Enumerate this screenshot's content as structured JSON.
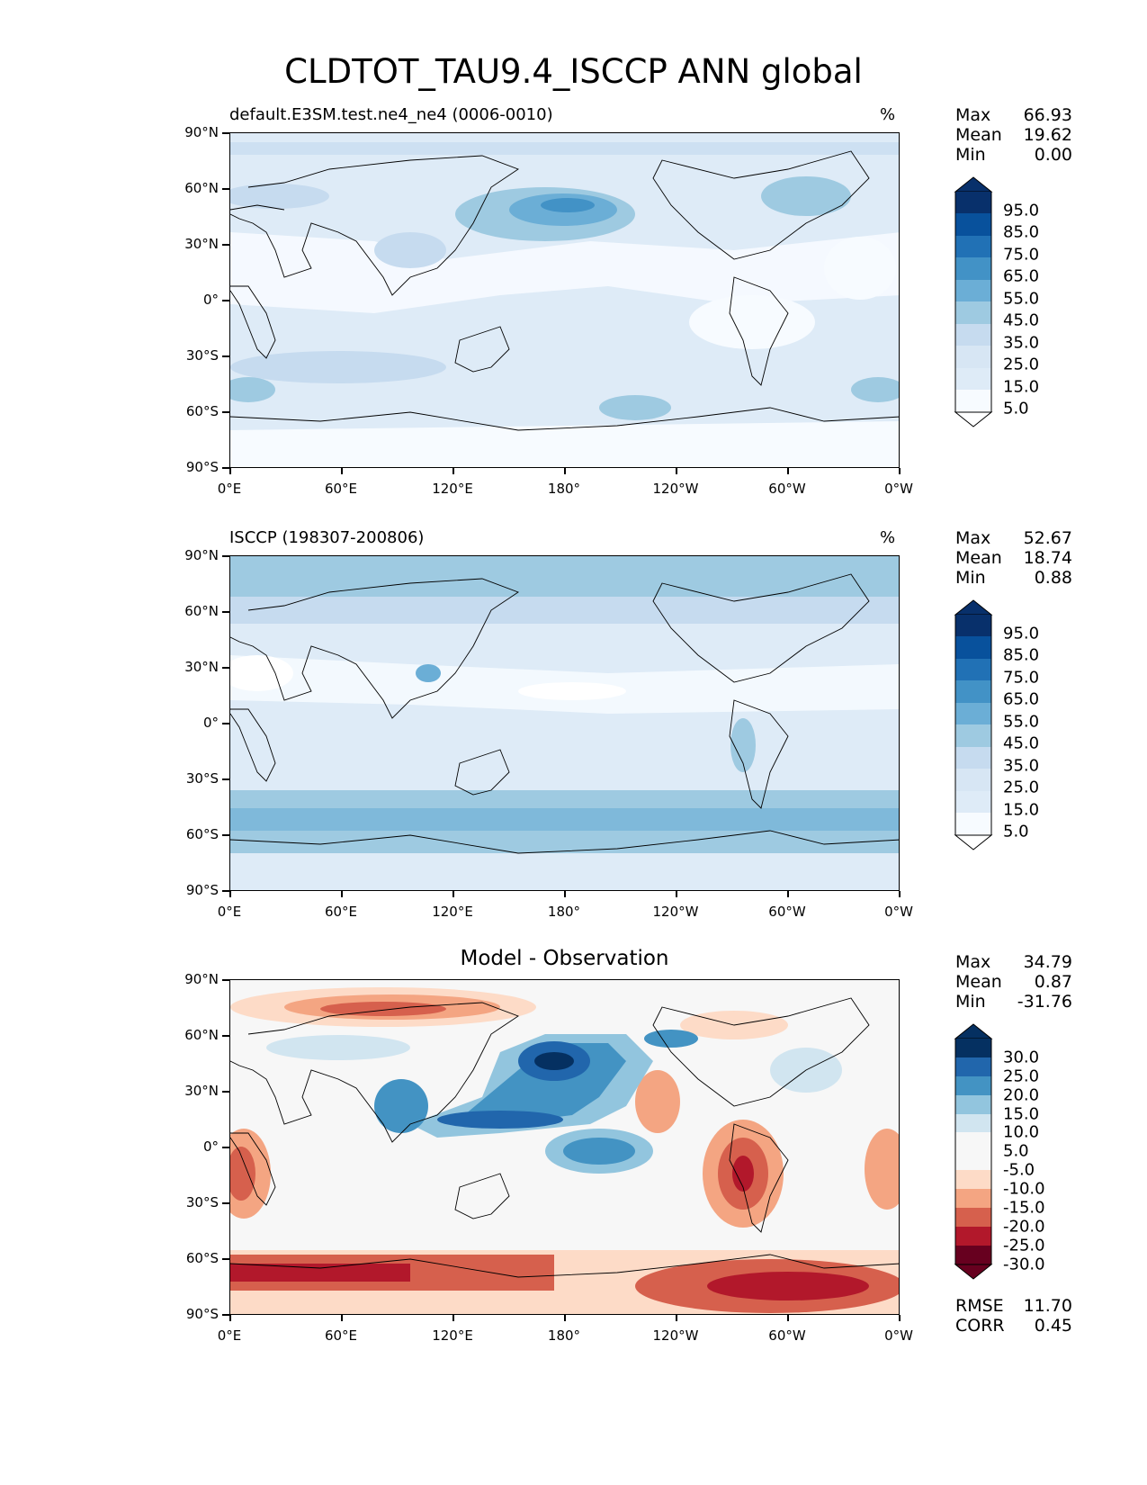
{
  "title": "CLDTOT_TAU9.4_ISCCP ANN global",
  "axes": {
    "y_labels": [
      "90°N",
      "60°N",
      "30°N",
      "0°",
      "30°S",
      "60°S",
      "90°S"
    ],
    "x_labels": [
      "0°E",
      "60°E",
      "120°E",
      "180°",
      "120°W",
      "60°W",
      "0°W"
    ]
  },
  "panels": [
    {
      "left_title": "default.E3SM.test.ne4_ne4 (0006-0010)",
      "right_title": "%",
      "stats": [
        {
          "label": "Max",
          "value": "66.93"
        },
        {
          "label": "Mean",
          "value": "19.62"
        },
        {
          "label": "Min",
          "value": "0.00"
        }
      ],
      "colorbar_labels": [
        "95.0",
        "85.0",
        "75.0",
        "65.0",
        "55.0",
        "45.0",
        "35.0",
        "25.0",
        "15.0",
        "5.0"
      ]
    },
    {
      "left_title": "ISCCP (198307-200806)",
      "right_title": "%",
      "stats": [
        {
          "label": "Max",
          "value": "52.67"
        },
        {
          "label": "Mean",
          "value": "18.74"
        },
        {
          "label": "Min",
          "value": "0.88"
        }
      ],
      "colorbar_labels": [
        "95.0",
        "85.0",
        "75.0",
        "65.0",
        "55.0",
        "45.0",
        "35.0",
        "25.0",
        "15.0",
        "5.0"
      ]
    },
    {
      "center_title": "Model - Observation",
      "stats": [
        {
          "label": "Max",
          "value": "34.79"
        },
        {
          "label": "Mean",
          "value": "0.87"
        },
        {
          "label": "Min",
          "value": "-31.76"
        }
      ],
      "colorbar_labels": [
        "30.0",
        "25.0",
        "20.0",
        "15.0",
        "10.0",
        "5.0",
        "-5.0",
        "-10.0",
        "-15.0",
        "-20.0",
        "-25.0",
        "-30.0"
      ],
      "extra_stats": [
        {
          "label": "RMSE",
          "value": "11.70"
        },
        {
          "label": "CORR",
          "value": "0.45"
        }
      ]
    }
  ],
  "colors": {
    "blues": [
      "#f7fbff",
      "#deebf7",
      "#c6dbef",
      "#9ecae1",
      "#6baed6",
      "#4292c6",
      "#2171b5",
      "#08519c",
      "#08306b"
    ],
    "diff": [
      "#67001f",
      "#b2182b",
      "#d6604d",
      "#f4a582",
      "#fddbc7",
      "#f7f7f7",
      "#d1e5f0",
      "#92c5de",
      "#4393c3",
      "#2166ac",
      "#053061"
    ]
  }
}
